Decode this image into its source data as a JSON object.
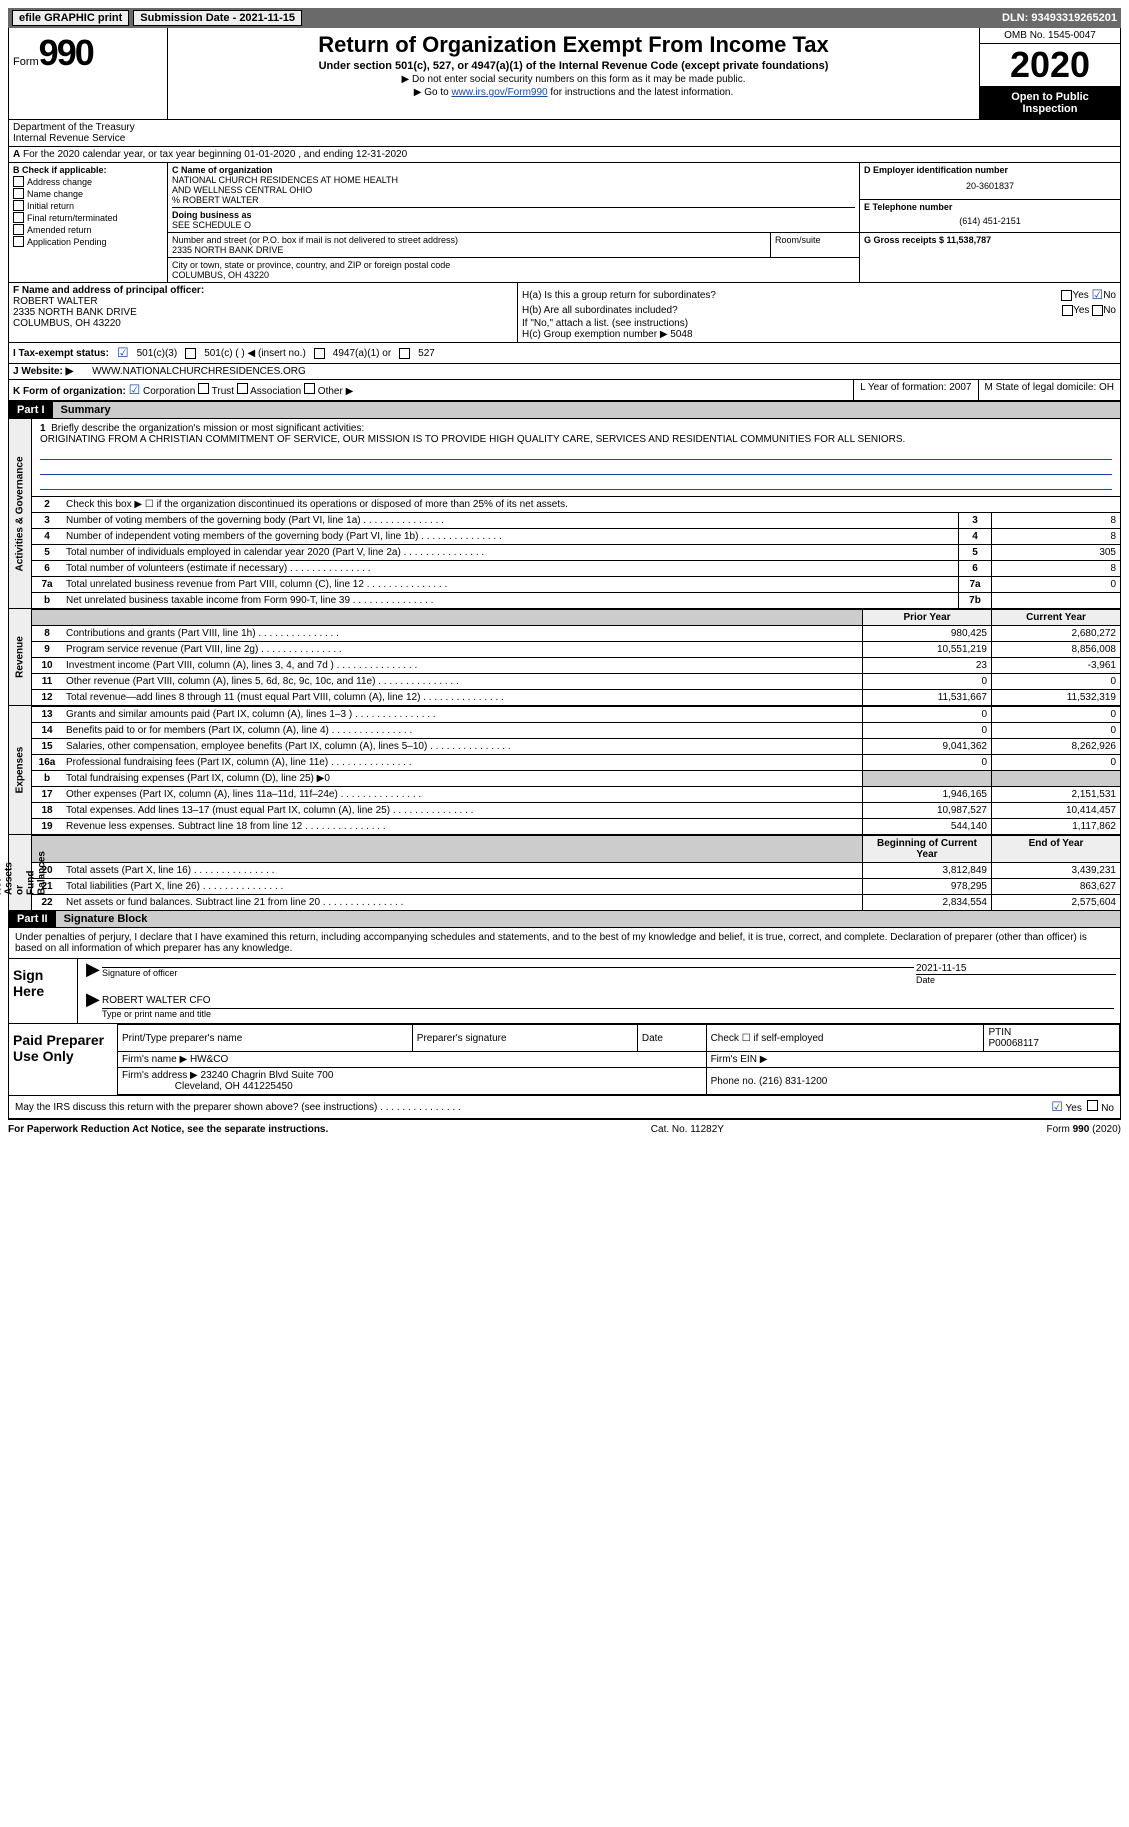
{
  "topbar": {
    "efile": "efile GRAPHIC print",
    "submission_label": "Submission Date - 2021-11-15",
    "dln_label": "DLN: 93493319265201"
  },
  "header": {
    "form_label": "Form",
    "form_number": "990",
    "title": "Return of Organization Exempt From Income Tax",
    "subtitle": "Under section 501(c), 527, or 4947(a)(1) of the Internal Revenue Code (except private foundations)",
    "note1": "▶ Do not enter social security numbers on this form as it may be made public.",
    "note2_pre": "▶ Go to ",
    "note2_link": "www.irs.gov/Form990",
    "note2_post": " for instructions and the latest information.",
    "dept": "Department of the Treasury\nInternal Revenue Service",
    "omb": "OMB No. 1545-0047",
    "year": "2020",
    "open": "Open to Public Inspection"
  },
  "line_a": "For the 2020 calendar year, or tax year beginning 01-01-2020    , and ending 12-31-2020",
  "section_b": {
    "header": "B Check if applicable:",
    "opts": [
      "Address change",
      "Name change",
      "Initial return",
      "Final return/terminated",
      "Amended return",
      "Application Pending"
    ]
  },
  "section_c": {
    "name_label": "C Name of organization",
    "name1": "NATIONAL CHURCH RESIDENCES AT HOME HEALTH",
    "name2": "AND WELLNESS CENTRAL OHIO",
    "care_of": "% ROBERT WALTER",
    "dba_label": "Doing business as",
    "dba": "SEE SCHEDULE O",
    "addr_label": "Number and street (or P.O. box if mail is not delivered to street address)",
    "addr": "2335 NORTH BANK DRIVE",
    "room_label": "Room/suite",
    "city_label": "City or town, state or province, country, and ZIP or foreign postal code",
    "city": "COLUMBUS, OH  43220"
  },
  "section_de": {
    "d_label": "D Employer identification number",
    "d_val": "20-3601837",
    "e_label": "E Telephone number",
    "e_val": "(614) 451-2151",
    "g_label": "G Gross receipts $ 11,538,787"
  },
  "section_f": {
    "label": "F Name and address of principal officer:",
    "name": "ROBERT WALTER",
    "addr1": "2335 NORTH BANK DRIVE",
    "addr2": "COLUMBUS, OH  43220"
  },
  "section_h": {
    "ha": "H(a)  Is this a group return for subordinates?",
    "hb": "H(b)  Are all subordinates included?",
    "hb_note": "If \"No,\" attach a list. (see instructions)",
    "hc": "H(c)  Group exemption number ▶   5048",
    "yes": "Yes",
    "no": "No"
  },
  "line_i": {
    "label": "I    Tax-exempt status:",
    "o1": "501(c)(3)",
    "o2": "501(c) (  ) ◀ (insert no.)",
    "o3": "4947(a)(1) or",
    "o4": "527"
  },
  "line_j": {
    "label": "J    Website: ▶",
    "val": "WWW.NATIONALCHURCHRESIDENCES.ORG"
  },
  "line_k": {
    "label": "K Form of organization:",
    "o1": "Corporation",
    "o2": "Trust",
    "o3": "Association",
    "o4": "Other ▶",
    "l_label": "L Year of formation: 2007",
    "m_label": "M State of legal domicile: OH"
  },
  "part1": {
    "hdr": "Part I",
    "title": "Summary",
    "side_ag": "Activities & Governance",
    "side_rev": "Revenue",
    "side_exp": "Expenses",
    "side_na": "Net Assets or\nFund Balances",
    "l1_label": "Briefly describe the organization's mission or most significant activities:",
    "l1_text": "ORIGINATING FROM A CHRISTIAN COMMITMENT OF SERVICE, OUR MISSION IS TO PROVIDE HIGH QUALITY CARE, SERVICES AND RESIDENTIAL COMMUNITIES FOR ALL SENIORS.",
    "l2": "Check this box ▶ ☐ if the organization discontinued its operations or disposed of more than 25% of its net assets.",
    "rows_top": [
      {
        "n": "3",
        "label": "Number of voting members of the governing body (Part VI, line 1a)",
        "box": "3",
        "val": "8"
      },
      {
        "n": "4",
        "label": "Number of independent voting members of the governing body (Part VI, line 1b)",
        "box": "4",
        "val": "8"
      },
      {
        "n": "5",
        "label": "Total number of individuals employed in calendar year 2020 (Part V, line 2a)",
        "box": "5",
        "val": "305"
      },
      {
        "n": "6",
        "label": "Total number of volunteers (estimate if necessary)",
        "box": "6",
        "val": "8"
      },
      {
        "n": "7a",
        "label": "Total unrelated business revenue from Part VIII, column (C), line 12",
        "box": "7a",
        "val": "0"
      },
      {
        "n": "b",
        "label": "Net unrelated business taxable income from Form 990-T, line 39",
        "box": "7b",
        "val": ""
      }
    ],
    "col_prior": "Prior Year",
    "col_curr": "Current Year",
    "rows_rev": [
      {
        "n": "8",
        "label": "Contributions and grants (Part VIII, line 1h)",
        "p": "980,425",
        "c": "2,680,272"
      },
      {
        "n": "9",
        "label": "Program service revenue (Part VIII, line 2g)",
        "p": "10,551,219",
        "c": "8,856,008"
      },
      {
        "n": "10",
        "label": "Investment income (Part VIII, column (A), lines 3, 4, and 7d )",
        "p": "23",
        "c": "-3,961"
      },
      {
        "n": "11",
        "label": "Other revenue (Part VIII, column (A), lines 5, 6d, 8c, 9c, 10c, and 11e)",
        "p": "0",
        "c": "0"
      },
      {
        "n": "12",
        "label": "Total revenue—add lines 8 through 11 (must equal Part VIII, column (A), line 12)",
        "p": "11,531,667",
        "c": "11,532,319"
      }
    ],
    "rows_exp": [
      {
        "n": "13",
        "label": "Grants and similar amounts paid (Part IX, column (A), lines 1–3 )",
        "p": "0",
        "c": "0"
      },
      {
        "n": "14",
        "label": "Benefits paid to or for members (Part IX, column (A), line 4)",
        "p": "0",
        "c": "0"
      },
      {
        "n": "15",
        "label": "Salaries, other compensation, employee benefits (Part IX, column (A), lines 5–10)",
        "p": "9,041,362",
        "c": "8,262,926"
      },
      {
        "n": "16a",
        "label": "Professional fundraising fees (Part IX, column (A), line 11e)",
        "p": "0",
        "c": "0"
      }
    ],
    "l16b": "Total fundraising expenses (Part IX, column (D), line 25) ▶0",
    "rows_exp2": [
      {
        "n": "17",
        "label": "Other expenses (Part IX, column (A), lines 11a–11d, 11f–24e)",
        "p": "1,946,165",
        "c": "2,151,531"
      },
      {
        "n": "18",
        "label": "Total expenses. Add lines 13–17 (must equal Part IX, column (A), line 25)",
        "p": "10,987,527",
        "c": "10,414,457"
      },
      {
        "n": "19",
        "label": "Revenue less expenses. Subtract line 18 from line 12",
        "p": "544,140",
        "c": "1,117,862"
      }
    ],
    "col_beg": "Beginning of Current Year",
    "col_end": "End of Year",
    "rows_na": [
      {
        "n": "20",
        "label": "Total assets (Part X, line 16)",
        "p": "3,812,849",
        "c": "3,439,231"
      },
      {
        "n": "21",
        "label": "Total liabilities (Part X, line 26)",
        "p": "978,295",
        "c": "863,627"
      },
      {
        "n": "22",
        "label": "Net assets or fund balances. Subtract line 21 from line 20",
        "p": "2,834,554",
        "c": "2,575,604"
      }
    ]
  },
  "part2": {
    "hdr": "Part II",
    "title": "Signature Block",
    "decl": "Under penalties of perjury, I declare that I have examined this return, including accompanying schedules and statements, and to the best of my knowledge and belief, it is true, correct, and complete. Declaration of preparer (other than officer) is based on all information of which preparer has any knowledge.",
    "sign_here": "Sign Here",
    "sig_officer": "Signature of officer",
    "sig_date": "2021-11-15",
    "date_label": "Date",
    "officer_name": "ROBERT WALTER CFO",
    "officer_name_label": "Type or print name and title",
    "paid_label": "Paid Preparer Use Only",
    "prep_headers": [
      "Print/Type preparer's name",
      "Preparer's signature",
      "Date"
    ],
    "check_if": "Check ☐ if self-employed",
    "ptin_label": "PTIN",
    "ptin": "P00068117",
    "firm_name_label": "Firm's name    ▶",
    "firm_name": "HW&CO",
    "firm_ein_label": "Firm's EIN ▶",
    "firm_addr_label": "Firm's address ▶",
    "firm_addr1": "23240 Chagrin Blvd Suite 700",
    "firm_addr2": "Cleveland, OH  441225450",
    "phone_label": "Phone no. (216) 831-1200",
    "discuss": "May the IRS discuss this return with the preparer shown above? (see instructions)"
  },
  "footer": {
    "left": "For Paperwork Reduction Act Notice, see the separate instructions.",
    "mid": "Cat. No. 11282Y",
    "right": "Form 990 (2020)"
  }
}
